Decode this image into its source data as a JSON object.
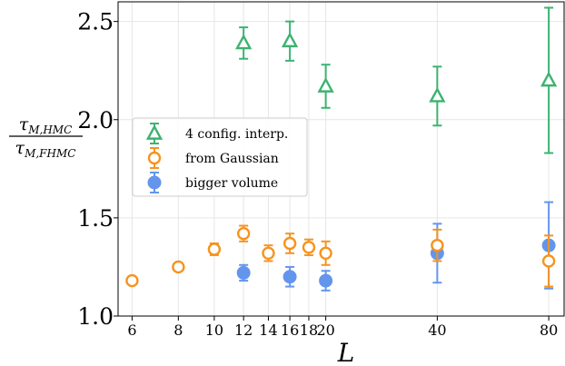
{
  "chart_data": {
    "type": "scatter",
    "xlabel": "L",
    "ylabel": {
      "numerator": "τM,HMC",
      "numerator_symbol": "τ",
      "numerator_sub": "M,HMC",
      "denominator": "τM,FHMC",
      "denominator_symbol": "τ",
      "denominator_sub": "M,FHMC"
    },
    "x_scale": "log",
    "xlim": [
      5.5,
      88
    ],
    "ylim": [
      1.0,
      2.6
    ],
    "x_ticks": [
      6,
      8,
      10,
      12,
      14,
      16,
      18,
      20,
      40,
      80
    ],
    "x_tick_labels": [
      "6",
      "8",
      "10",
      "12",
      "14",
      "16",
      "18",
      "20",
      "40",
      "80"
    ],
    "y_ticks": [
      1.0,
      1.5,
      2.0,
      2.5
    ],
    "y_tick_labels": [
      "1.0",
      "1.5",
      "2.0",
      "2.5"
    ],
    "grid": true,
    "legend_position": "center-left",
    "series": [
      {
        "name": "4 config. interp.",
        "color": "#3cb371",
        "marker": "triangle-open",
        "points": [
          {
            "x": 12,
            "y": 2.39,
            "err": 0.08
          },
          {
            "x": 16,
            "y": 2.4,
            "err": 0.1
          },
          {
            "x": 20,
            "y": 2.17,
            "err": 0.11
          },
          {
            "x": 40,
            "y": 2.12,
            "err": 0.15
          },
          {
            "x": 80,
            "y": 2.2,
            "err": 0.37
          }
        ]
      },
      {
        "name": "from Gaussian",
        "color": "#f7931e",
        "marker": "circle-open",
        "points": [
          {
            "x": 6,
            "y": 1.18,
            "err": 0.0
          },
          {
            "x": 8,
            "y": 1.25,
            "err": 0.02
          },
          {
            "x": 10,
            "y": 1.34,
            "err": 0.03
          },
          {
            "x": 12,
            "y": 1.42,
            "err": 0.04
          },
          {
            "x": 14,
            "y": 1.32,
            "err": 0.04
          },
          {
            "x": 16,
            "y": 1.37,
            "err": 0.05
          },
          {
            "x": 18,
            "y": 1.35,
            "err": 0.04
          },
          {
            "x": 20,
            "y": 1.32,
            "err": 0.06
          },
          {
            "x": 40,
            "y": 1.36,
            "err": 0.08
          },
          {
            "x": 80,
            "y": 1.28,
            "err": 0.13
          }
        ]
      },
      {
        "name": "bigger volume",
        "color": "#6495ed",
        "marker": "circle-filled",
        "points": [
          {
            "x": 12,
            "y": 1.22,
            "err": 0.04
          },
          {
            "x": 16,
            "y": 1.2,
            "err": 0.05
          },
          {
            "x": 20,
            "y": 1.18,
            "err": 0.05
          },
          {
            "x": 40,
            "y": 1.32,
            "err": 0.15
          },
          {
            "x": 80,
            "y": 1.36,
            "err": 0.22
          }
        ]
      }
    ]
  }
}
